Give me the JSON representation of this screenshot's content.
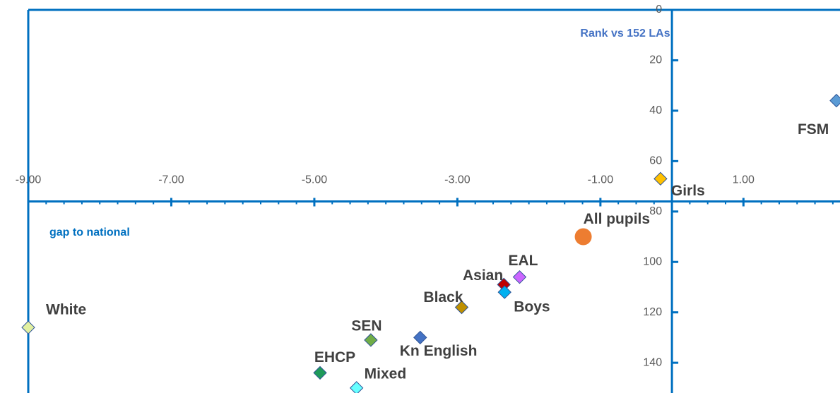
{
  "chart_data": {
    "type": "scatter",
    "x_title": "gap to national",
    "y_title": "Rank vs 152 LAs",
    "xlim": [
      -9,
      2.35
    ],
    "ylim": [
      0,
      152
    ],
    "y_reversed": true,
    "x_axis_crossing": 76,
    "xticks": [
      {
        "value": -9,
        "label": "-9.00"
      },
      {
        "value": -7,
        "label": "-7.00"
      },
      {
        "value": -5,
        "label": "-5.00"
      },
      {
        "value": -3,
        "label": "-3.00"
      },
      {
        "value": -1,
        "label": "-1.00"
      },
      {
        "value": 1,
        "label": "1.00"
      }
    ],
    "yticks": [
      0,
      20,
      40,
      60,
      80,
      100,
      120,
      140
    ],
    "series": [
      {
        "name": "FSM",
        "color": "#5b9bd5",
        "marker": "diamond",
        "x": [
          2.3
        ],
        "y": [
          36
        ]
      },
      {
        "name": "Girls",
        "color": "#ffc000",
        "marker": "diamond",
        "x": [
          -0.16
        ],
        "y": [
          67
        ]
      },
      {
        "name": "All pupils",
        "color": "#ed7d31",
        "marker": "circle",
        "x": [
          -1.24
        ],
        "y": [
          90
        ]
      },
      {
        "name": "EAL",
        "color": "#cc66ff",
        "marker": "diamond",
        "x": [
          -2.13
        ],
        "y": [
          106
        ]
      },
      {
        "name": "Asian",
        "color": "#c00000",
        "marker": "diamond",
        "x": [
          -2.35
        ],
        "y": [
          109
        ]
      },
      {
        "name": "Boys",
        "color": "#00b0f0",
        "marker": "diamond",
        "x": [
          -2.34
        ],
        "y": [
          112
        ]
      },
      {
        "name": "Black",
        "color": "#bf9000",
        "marker": "diamond",
        "x": [
          -2.94
        ],
        "y": [
          118
        ]
      },
      {
        "name": "White",
        "color": "#e2f0a0",
        "marker": "diamond",
        "x": [
          -9.0
        ],
        "y": [
          126
        ]
      },
      {
        "name": "SEN",
        "color": "#70ad47",
        "marker": "diamond",
        "x": [
          -4.21
        ],
        "y": [
          131
        ]
      },
      {
        "name": "Kn English",
        "color": "#4472c4",
        "marker": "diamond",
        "x": [
          -3.52
        ],
        "y": [
          130
        ]
      },
      {
        "name": "EHCP",
        "color": "#1f9a5a",
        "marker": "diamond",
        "x": [
          -4.92
        ],
        "y": [
          144
        ]
      },
      {
        "name": "Mixed",
        "color": "#66ffff",
        "marker": "diamond",
        "x": [
          -4.41
        ],
        "y": [
          150
        ]
      }
    ]
  }
}
